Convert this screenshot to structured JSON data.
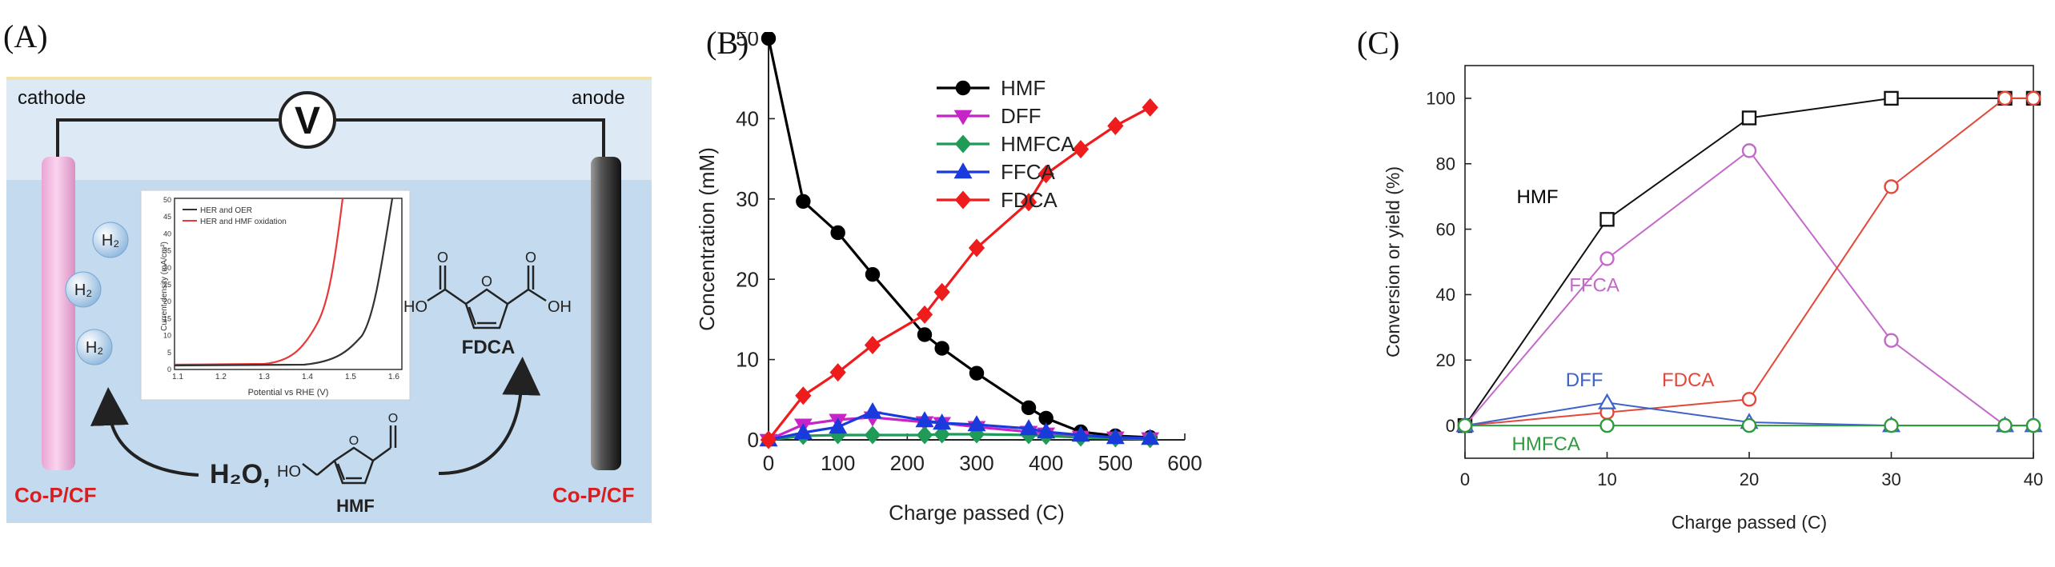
{
  "panels": {
    "a": "(A)",
    "b": "(B)",
    "c": "(C)"
  },
  "schematic": {
    "cathode_label": "cathode",
    "anode_label": "anode",
    "voltmeter_symbol": "V",
    "left_electrode_label": "Co-P/CF",
    "right_electrode_label": "Co-P/CF",
    "h2_bubble": "H₂",
    "reactant_water": "H₂O,",
    "reactant_name": "HMF",
    "hmf_oh": "HO",
    "product_name": "FDCA",
    "fdca_left_oh": "HO",
    "fdca_right_oh": "OH",
    "inset": {
      "ylabel": "Current density (mA/cm²)",
      "xlabel": "Potential vs RHE (V)",
      "legend_1": "HER and OER",
      "legend_2": "HER and HMF oxidation",
      "xticks": [
        "1.1",
        "1.2",
        "1.3",
        "1.4",
        "1.5",
        "1.6"
      ],
      "yticks": [
        "0",
        "5",
        "10",
        "15",
        "20",
        "25",
        "30",
        "35",
        "40",
        "45",
        "50"
      ],
      "colors": {
        "oer": "#333333",
        "hmf": "#e8383a"
      }
    },
    "colors": {
      "electrode": "#f5b7e0",
      "anode": "#555555",
      "electrolyte": "#c9ddf0",
      "label_red": "#d81e1e"
    }
  },
  "chart_data": [
    {
      "id": "B",
      "type": "line",
      "xlabel": "Charge passed (C)",
      "ylabel": "Concentration (mM)",
      "xlim": [
        0,
        600
      ],
      "ylim": [
        0,
        50
      ],
      "xticks": [
        0,
        100,
        200,
        300,
        400,
        500,
        600
      ],
      "yticks": [
        0,
        10,
        20,
        30,
        40,
        50
      ],
      "legend_position": "top-center",
      "series": [
        {
          "name": "HMF",
          "color": "#000000",
          "marker": "circle",
          "x": [
            0,
            50,
            100,
            150,
            225,
            250,
            300,
            375,
            400,
            450,
            500,
            550
          ],
          "y": [
            50,
            29.7,
            25.8,
            20.6,
            13.1,
            11.4,
            8.3,
            4.0,
            2.7,
            1.0,
            0.5,
            0.3
          ]
        },
        {
          "name": "DFF",
          "color": "#c724c7",
          "marker": "triangle-down",
          "x": [
            0,
            50,
            100,
            150,
            225,
            250,
            300,
            375,
            400,
            450,
            500,
            550
          ],
          "y": [
            0,
            1.9,
            2.5,
            2.8,
            2.2,
            2.1,
            1.6,
            1.0,
            0.8,
            0.4,
            0.3,
            0.2
          ]
        },
        {
          "name": "HMFCA",
          "color": "#1f9a57",
          "marker": "diamond",
          "x": [
            0,
            50,
            100,
            150,
            225,
            250,
            300,
            375,
            400,
            450,
            500,
            550
          ],
          "y": [
            0,
            0.5,
            0.6,
            0.6,
            0.6,
            0.7,
            0.7,
            0.6,
            0.5,
            0.3,
            0.2,
            0.1
          ]
        },
        {
          "name": "FFCA",
          "color": "#1a3bdc",
          "marker": "triangle-up",
          "x": [
            0,
            50,
            100,
            150,
            225,
            250,
            300,
            375,
            400,
            450,
            500,
            550
          ],
          "y": [
            0,
            0.9,
            1.6,
            3.5,
            2.4,
            2.1,
            1.9,
            1.4,
            1.0,
            0.6,
            0.3,
            0.2
          ]
        },
        {
          "name": "FDCA",
          "color": "#ee1c1c",
          "marker": "diamond",
          "x": [
            0,
            50,
            100,
            150,
            225,
            250,
            300,
            375,
            400,
            450,
            500,
            550
          ],
          "y": [
            0,
            5.5,
            8.4,
            11.8,
            15.6,
            18.4,
            23.9,
            29.6,
            33.1,
            36.2,
            39.1,
            41.4
          ]
        }
      ]
    },
    {
      "id": "C",
      "type": "line",
      "xlabel": "Charge passed (C)",
      "ylabel": "Conversion or yield (%)",
      "xlim": [
        0,
        40
      ],
      "ylim": [
        -10,
        110
      ],
      "xticks": [
        0,
        10,
        20,
        30,
        40
      ],
      "yticks": [
        0,
        20,
        40,
        60,
        80,
        100
      ],
      "annotations": [
        {
          "text": "HMF",
          "color": "#000000",
          "x": 5.1,
          "y": 68
        },
        {
          "text": "FFCA",
          "color": "#c36ac9",
          "x": 9.1,
          "y": 41
        },
        {
          "text": "DFF",
          "color": "#3d62c9",
          "x": 8.4,
          "y": 12
        },
        {
          "text": "FDCA",
          "color": "#e2483a",
          "x": 15.7,
          "y": 12
        },
        {
          "text": "HMFCA",
          "color": "#2e9a3d",
          "x": 5.7,
          "y": -7.5
        }
      ],
      "series": [
        {
          "name": "HMF",
          "color": "#111111",
          "marker": "square",
          "x": [
            0,
            10,
            20,
            30,
            38,
            40
          ],
          "y": [
            0,
            63,
            94,
            100,
            100,
            100
          ]
        },
        {
          "name": "FFCA",
          "color": "#c36ac9",
          "marker": "circle",
          "x": [
            0,
            10,
            20,
            30,
            38,
            40
          ],
          "y": [
            0,
            51,
            84,
            26,
            0,
            0
          ]
        },
        {
          "name": "FDCA",
          "color": "#e2483a",
          "marker": "circle",
          "x": [
            0,
            10,
            20,
            30,
            38,
            40
          ],
          "y": [
            0,
            4,
            8,
            73,
            100,
            100
          ]
        },
        {
          "name": "DFF",
          "color": "#3d62c9",
          "marker": "triangle",
          "x": [
            0,
            10,
            20,
            30,
            38,
            40
          ],
          "y": [
            0,
            7,
            1,
            0,
            0,
            0
          ]
        },
        {
          "name": "HMFCA",
          "color": "#2e9a3d",
          "marker": "circle",
          "x": [
            0,
            10,
            20,
            30,
            38,
            40
          ],
          "y": [
            0,
            0,
            0,
            0,
            0,
            0
          ]
        }
      ]
    }
  ]
}
